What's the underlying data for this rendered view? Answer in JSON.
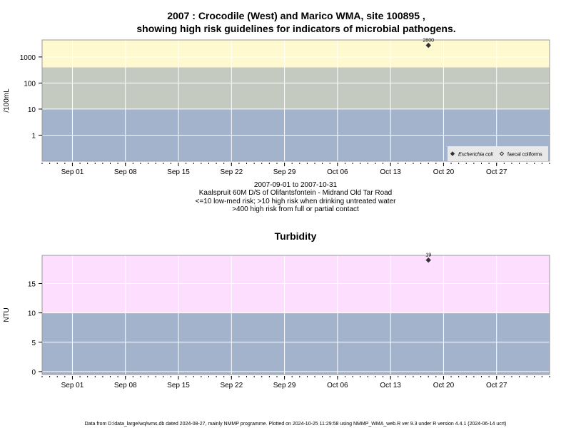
{
  "colors": {
    "background": "#ffffff",
    "band_low": "#a2b3cb",
    "band_med": "#c5cac0",
    "band_high": "#fff9cf",
    "band_turbidity_high": "#fddeff",
    "grid": "#ffffff",
    "axis": "#000000",
    "panel_border": "#999999",
    "point": "#333333",
    "legend_bg": "#e8e8e8"
  },
  "chart_data": [
    {
      "type": "scatter",
      "title_line1": "2007 : Crocodile (West) and Marico WMA, site 100895 ,",
      "title_line2": "showing high risk guidelines for indicators of microbial pathogens.",
      "ylabel": "/100mL",
      "y_scale": "log",
      "ylim": [
        0.1,
        4500
      ],
      "yticks": [
        {
          "value": 1,
          "label": "1"
        },
        {
          "value": 10,
          "label": "10"
        },
        {
          "value": 100,
          "label": "100"
        },
        {
          "value": 1000,
          "label": "1000"
        }
      ],
      "x_range": [
        "2007-08-28",
        "2007-11-03"
      ],
      "xticks": [
        {
          "date": "2007-09-01",
          "label": "Sep 01"
        },
        {
          "date": "2007-09-08",
          "label": "Sep 08"
        },
        {
          "date": "2007-09-15",
          "label": "Sep 15"
        },
        {
          "date": "2007-09-22",
          "label": "Sep 22"
        },
        {
          "date": "2007-09-29",
          "label": "Sep 29"
        },
        {
          "date": "2007-10-06",
          "label": "Oct 06"
        },
        {
          "date": "2007-10-13",
          "label": "Oct 13"
        },
        {
          "date": "2007-10-20",
          "label": "Oct 20"
        },
        {
          "date": "2007-10-27",
          "label": "Oct 27"
        }
      ],
      "bands": [
        {
          "from": 0.1,
          "to": 10,
          "color": "#a2b3cb"
        },
        {
          "from": 10,
          "to": 400,
          "color": "#c5cac0"
        },
        {
          "from": 400,
          "to": 4500,
          "color": "#fff9cf"
        }
      ],
      "grid": true,
      "legend_position": "bottom-right",
      "series": [
        {
          "name": "Escherichia coli",
          "marker": "filled-diamond",
          "points": [
            {
              "x": "2007-10-18",
              "y": 2800,
              "label": "2800"
            }
          ]
        },
        {
          "name": "faecal coliforms",
          "marker": "open-diamond",
          "points": []
        }
      ],
      "subtitle_lines": [
        "2007-09-01 to 2007-10-31",
        "Kaalspruit 60M D/S of Olifantsfontein - Midrand Old Tar Road",
        "<=10 low-med risk; >10 high risk when drinking untreated water",
        ">400 high risk from full or partial contact"
      ]
    },
    {
      "type": "scatter",
      "title": "Turbidity",
      "ylabel": "NTU",
      "ylim": [
        -0.5,
        19.8
      ],
      "yticks": [
        {
          "value": 0,
          "label": "0"
        },
        {
          "value": 5,
          "label": "5"
        },
        {
          "value": 10,
          "label": "10"
        },
        {
          "value": 15,
          "label": "15"
        }
      ],
      "x_range": [
        "2007-08-28",
        "2007-11-03"
      ],
      "xticks": [
        {
          "date": "2007-09-01",
          "label": "Sep 01"
        },
        {
          "date": "2007-09-08",
          "label": "Sep 08"
        },
        {
          "date": "2007-09-15",
          "label": "Sep 15"
        },
        {
          "date": "2007-09-22",
          "label": "Sep 22"
        },
        {
          "date": "2007-09-29",
          "label": "Sep 29"
        },
        {
          "date": "2007-10-06",
          "label": "Oct 06"
        },
        {
          "date": "2007-10-13",
          "label": "Oct 13"
        },
        {
          "date": "2007-10-20",
          "label": "Oct 20"
        },
        {
          "date": "2007-10-27",
          "label": "Oct 27"
        }
      ],
      "bands": [
        {
          "from": -0.5,
          "to": 10,
          "color": "#a2b3cb"
        },
        {
          "from": 10,
          "to": 19.8,
          "color": "#fddeff"
        }
      ],
      "grid": true,
      "series": [
        {
          "marker": "filled-diamond",
          "points": [
            {
              "x": "2007-10-18",
              "y": 19,
              "label": "19"
            }
          ]
        }
      ]
    }
  ],
  "footer": "Data from D:/data_large/wq/wms.db dated 2024-08-27, mainly NMMP programme. Plotted on 2024-10-25 11:29:58 using NMMP_WMA_web.R ver 9.3 under R version 4.4.1 (2024-06-14 ucrt)"
}
